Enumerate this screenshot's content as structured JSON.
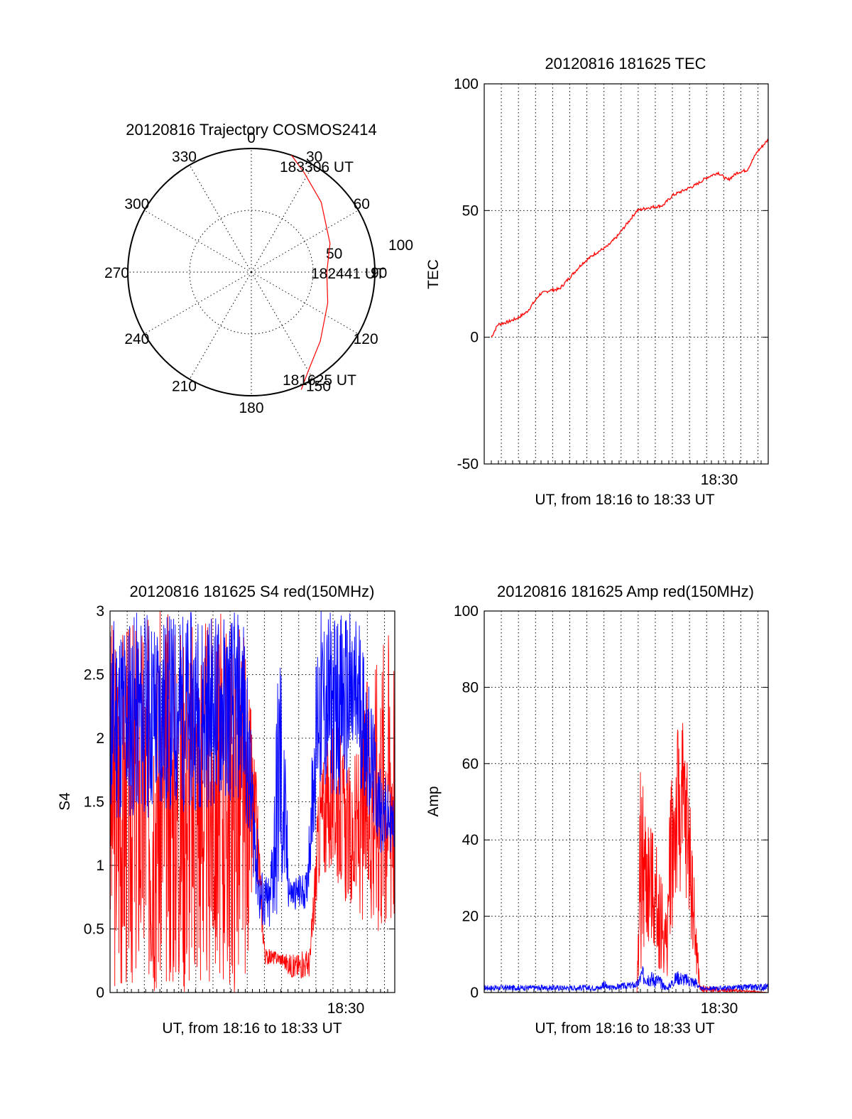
{
  "chart_data": [
    {
      "type": "polar",
      "title": "20120816 Trajectory COSMOS2414",
      "angle_labels": [
        "0",
        "30",
        "60",
        "90",
        "120",
        "150",
        "180",
        "210",
        "240",
        "270",
        "300",
        "330"
      ],
      "radius_labels": [
        "50",
        "100"
      ],
      "trajectory": {
        "color": "#ff0000",
        "points": [
          {
            "azimuth": 19,
            "zenith": 90
          },
          {
            "azimuth": 28,
            "zenith": 82
          },
          {
            "azimuth": 45,
            "zenith": 72
          },
          {
            "azimuth": 70,
            "zenith": 61
          },
          {
            "azimuth": 90,
            "zenith": 55
          },
          {
            "azimuth": 112,
            "zenith": 60
          },
          {
            "azimuth": 135,
            "zenith": 71
          },
          {
            "azimuth": 150,
            "zenith": 83
          },
          {
            "azimuth": 157,
            "zenith": 93
          }
        ]
      },
      "annotations": [
        "183306 UT",
        "182441 UT",
        "181625 UT"
      ]
    },
    {
      "type": "line",
      "title": "20120816 181625 TEC",
      "xlabel": "UT, from 18:16 to 18:33 UT",
      "ylabel": "TEC",
      "xtick_label": "18:30",
      "ylim": [
        -50,
        100
      ],
      "yticks": [
        "-50",
        "0",
        "50",
        "100"
      ],
      "xlim_minutes": [
        0,
        17.1
      ],
      "series": [
        {
          "color": "#ff0000",
          "x_minutes": [
            0,
            0.4,
            1.0,
            1.6,
            2.2,
            3.0,
            3.6,
            4.2,
            4.9,
            5.6,
            6.4,
            7.2,
            7.8,
            8.4,
            9.0,
            9.6,
            10.6,
            11.2,
            11.9,
            12.6,
            13.3,
            14.0,
            14.6,
            15.2,
            15.8,
            16.4,
            17.1
          ],
          "values": [
            0,
            5,
            6,
            7.5,
            10,
            17,
            18.5,
            19,
            24,
            29,
            33,
            36,
            40,
            45,
            50,
            51,
            52,
            56,
            58,
            60,
            63,
            65,
            62,
            65,
            66,
            73,
            78
          ]
        }
      ]
    },
    {
      "type": "line",
      "title": "20120816 181625 S4 red(150MHz)",
      "xlabel": "UT, from 18:16 to 18:33 UT",
      "ylabel": "S4",
      "xtick_label": "18:30",
      "ylim": [
        0,
        3
      ],
      "yticks": [
        "0",
        "0.5",
        "1",
        "1.5",
        "2",
        "2.5",
        "3"
      ],
      "xlim_minutes": [
        0,
        17.1
      ],
      "series": [
        {
          "color": "#ff0000",
          "description_note": "",
          "envelope": [
            {
              "x": 0.0,
              "low": 0.0,
              "high": 3.0
            },
            {
              "x": 8.0,
              "low": 0.0,
              "high": 3.0
            },
            {
              "x": 8.8,
              "low": 0.9,
              "high": 1.7
            },
            {
              "x": 9.3,
              "low": 0.22,
              "high": 0.35
            },
            {
              "x": 10.2,
              "low": 0.22,
              "high": 0.32
            },
            {
              "x": 11.0,
              "low": 0.1,
              "high": 0.3
            },
            {
              "x": 12.0,
              "low": 0.12,
              "high": 0.35
            },
            {
              "x": 12.6,
              "low": 0.9,
              "high": 1.8
            },
            {
              "x": 13.5,
              "low": 0.9,
              "high": 2.2
            },
            {
              "x": 14.5,
              "low": 0.6,
              "high": 1.7
            },
            {
              "x": 15.5,
              "low": 0.5,
              "high": 2.5
            },
            {
              "x": 16.5,
              "low": 0.4,
              "high": 3.0
            },
            {
              "x": 17.1,
              "low": 0.5,
              "high": 3.0
            }
          ]
        },
        {
          "color": "#0000ff",
          "envelope": [
            {
              "x": 0.0,
              "low": 1.3,
              "high": 3.0
            },
            {
              "x": 8.0,
              "low": 1.5,
              "high": 3.0
            },
            {
              "x": 9.0,
              "low": 0.5,
              "high": 1.0
            },
            {
              "x": 9.6,
              "low": 0.45,
              "high": 0.9
            },
            {
              "x": 10.2,
              "low": 0.55,
              "high": 3.0
            },
            {
              "x": 10.8,
              "low": 0.65,
              "high": 0.9
            },
            {
              "x": 11.8,
              "low": 0.65,
              "high": 0.95
            },
            {
              "x": 12.5,
              "low": 1.5,
              "high": 3.0
            },
            {
              "x": 15.0,
              "low": 1.6,
              "high": 3.0
            },
            {
              "x": 16.2,
              "low": 1.1,
              "high": 1.8
            },
            {
              "x": 17.1,
              "low": 1.1,
              "high": 1.5
            }
          ]
        }
      ]
    },
    {
      "type": "line",
      "title": "20120816 181625 Amp red(150MHz)",
      "xlabel": "UT, from 18:16 to 18:33 UT",
      "ylabel": "Amp",
      "xtick_label": "18:30",
      "ylim": [
        0,
        100
      ],
      "yticks": [
        "0",
        "20",
        "40",
        "60",
        "80",
        "100"
      ],
      "xlim_minutes": [
        0,
        17.1
      ],
      "series": [
        {
          "color": "#ff0000",
          "envelope": [
            {
              "x": 0.0,
              "low": 0,
              "high": 0
            },
            {
              "x": 9.2,
              "low": 0,
              "high": 0
            },
            {
              "x": 9.4,
              "low": 5,
              "high": 60
            },
            {
              "x": 10.0,
              "low": 12,
              "high": 45
            },
            {
              "x": 10.6,
              "low": 5,
              "high": 35
            },
            {
              "x": 11.0,
              "low": 2,
              "high": 20
            },
            {
              "x": 11.2,
              "low": 15,
              "high": 60
            },
            {
              "x": 11.8,
              "low": 25,
              "high": 75
            },
            {
              "x": 12.3,
              "low": 20,
              "high": 62
            },
            {
              "x": 12.7,
              "low": 5,
              "high": 25
            },
            {
              "x": 13.0,
              "low": 0,
              "high": 2
            },
            {
              "x": 17.1,
              "low": 0,
              "high": 0
            }
          ]
        },
        {
          "color": "#0000ff",
          "envelope": [
            {
              "x": 0.0,
              "low": 0.5,
              "high": 2
            },
            {
              "x": 7.0,
              "low": 0.5,
              "high": 2
            },
            {
              "x": 7.2,
              "low": 1,
              "high": 4
            },
            {
              "x": 7.4,
              "low": 0.5,
              "high": 2
            },
            {
              "x": 9.2,
              "low": 1,
              "high": 3
            },
            {
              "x": 9.5,
              "low": 2,
              "high": 7
            },
            {
              "x": 10.5,
              "low": 1,
              "high": 5
            },
            {
              "x": 11.0,
              "low": 0.5,
              "high": 1.5
            },
            {
              "x": 11.6,
              "low": 2,
              "high": 6
            },
            {
              "x": 12.8,
              "low": 1,
              "high": 4
            },
            {
              "x": 13.0,
              "low": 0.5,
              "high": 1.5
            },
            {
              "x": 17.1,
              "low": 0.5,
              "high": 2.5
            }
          ]
        }
      ]
    }
  ]
}
